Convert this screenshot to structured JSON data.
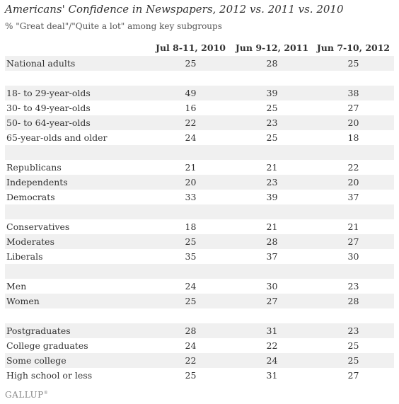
{
  "chart_data": {
    "type": "table",
    "title": "Americans' Confidence in Newspapers, 2012 vs. 2011 vs. 2010",
    "subtitle": "% \"Great deal\"/\"Quite a lot\" among key subgroups",
    "columns": [
      "Jul 8-11, 2010",
      "Jun 9-12, 2011",
      "Jun 7-10, 2012"
    ],
    "rows": [
      {
        "label": "National adults",
        "values": [
          25,
          28,
          25
        ],
        "shade": true
      },
      {
        "label": "",
        "values": [],
        "shade": false
      },
      {
        "label": "18- to 29-year-olds",
        "values": [
          49,
          39,
          38
        ],
        "shade": true
      },
      {
        "label": "30- to 49-year-olds",
        "values": [
          16,
          25,
          27
        ],
        "shade": false
      },
      {
        "label": "50- to 64-year-olds",
        "values": [
          22,
          23,
          20
        ],
        "shade": true
      },
      {
        "label": "65-year-olds and older",
        "values": [
          24,
          25,
          18
        ],
        "shade": false
      },
      {
        "label": "",
        "values": [],
        "shade": true
      },
      {
        "label": "Republicans",
        "values": [
          21,
          21,
          22
        ],
        "shade": false
      },
      {
        "label": "Independents",
        "values": [
          20,
          23,
          20
        ],
        "shade": true
      },
      {
        "label": "Democrats",
        "values": [
          33,
          39,
          37
        ],
        "shade": false
      },
      {
        "label": "",
        "values": [],
        "shade": true
      },
      {
        "label": "Conservatives",
        "values": [
          18,
          21,
          21
        ],
        "shade": false
      },
      {
        "label": "Moderates",
        "values": [
          25,
          28,
          27
        ],
        "shade": true
      },
      {
        "label": "Liberals",
        "values": [
          35,
          37,
          30
        ],
        "shade": false
      },
      {
        "label": "",
        "values": [],
        "shade": true
      },
      {
        "label": "Men",
        "values": [
          24,
          30,
          23
        ],
        "shade": false
      },
      {
        "label": "Women",
        "values": [
          25,
          27,
          28
        ],
        "shade": true
      },
      {
        "label": "",
        "values": [],
        "shade": false
      },
      {
        "label": "Postgraduates",
        "values": [
          28,
          31,
          23
        ],
        "shade": true
      },
      {
        "label": "College graduates",
        "values": [
          24,
          22,
          25
        ],
        "shade": false
      },
      {
        "label": "Some college",
        "values": [
          22,
          24,
          25
        ],
        "shade": true
      },
      {
        "label": "High school or less",
        "values": [
          25,
          31,
          27
        ],
        "shade": false
      }
    ]
  },
  "source_logo": "GALLUP",
  "colors": {
    "shade": "#f0f0f0",
    "text": "#333333"
  }
}
